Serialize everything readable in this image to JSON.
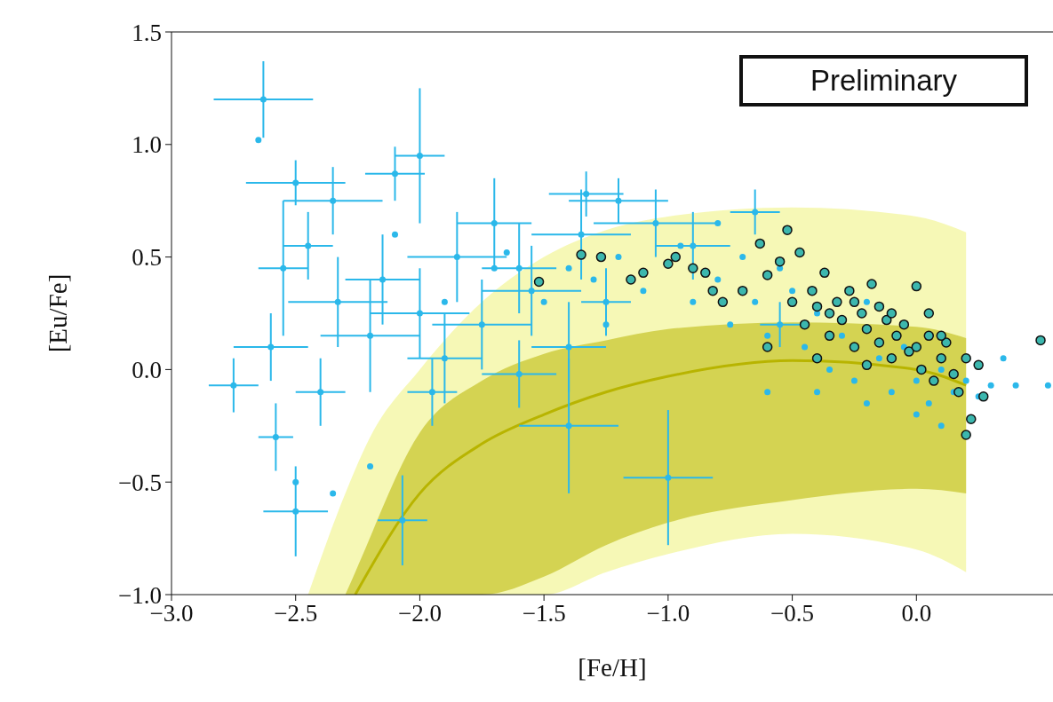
{
  "chart_data": {
    "type": "scatter",
    "xlabel": "[Fe/H]",
    "ylabel": "[Eu/Fe]",
    "xlim": [
      -3.0,
      0.55
    ],
    "ylim": [
      -1.0,
      1.5
    ],
    "xticks": [
      {
        "value": -3.0,
        "label": "−3.0"
      },
      {
        "value": -2.5,
        "label": "−2.5"
      },
      {
        "value": -2.0,
        "label": "−2.0"
      },
      {
        "value": -1.5,
        "label": "−1.5"
      },
      {
        "value": -1.0,
        "label": "−1.0"
      },
      {
        "value": -0.5,
        "label": "−0.5"
      },
      {
        "value": 0.0,
        "label": "0.0"
      }
    ],
    "yticks": [
      {
        "value": -1.0,
        "label": "−1.0"
      },
      {
        "value": -0.5,
        "label": "−0.5"
      },
      {
        "value": 0.0,
        "label": "0.0"
      },
      {
        "value": 0.5,
        "label": "0.5"
      },
      {
        "value": 1.0,
        "label": "1.0"
      },
      {
        "value": 1.5,
        "label": "1.5"
      }
    ],
    "grid": false,
    "legend": false,
    "annotations": [
      "Preliminary"
    ],
    "series": [
      {
        "type": "line",
        "color": "#eef27a",
        "x": [
          -2.45,
          -2.3,
          -2.2,
          -2.0,
          -1.75,
          -1.5,
          -1.25,
          -1.0,
          -0.5,
          0.0,
          0.2
        ],
        "values": [
          null,
          null,
          null,
          null,
          null,
          null,
          null,
          null,
          null,
          null,
          null
        ],
        "lower": [
          -1.0,
          -1.0,
          -1.0,
          -1.0,
          -1.0,
          -1.0,
          -0.9,
          -0.82,
          -0.73,
          -0.8,
          -0.9
        ],
        "upper": [
          -1.0,
          -0.55,
          -0.3,
          0.0,
          0.3,
          0.5,
          0.62,
          0.68,
          0.72,
          0.68,
          0.61
        ]
      },
      {
        "type": "line",
        "color": "#b8b400",
        "x": [
          -2.3,
          -2.26,
          -2.0,
          -1.75,
          -1.5,
          -1.25,
          -1.0,
          -0.5,
          0.0,
          0.2
        ],
        "values": [
          null,
          -1.0,
          -0.55,
          -0.33,
          -0.2,
          -0.1,
          -0.03,
          0.04,
          0.0,
          -0.07
        ],
        "lower": [
          -1.0,
          -1.0,
          -1.0,
          -1.0,
          -0.92,
          -0.78,
          -0.68,
          -0.58,
          -0.53,
          -0.55
        ],
        "upper": [
          -1.0,
          -0.9,
          -0.28,
          -0.05,
          0.07,
          0.13,
          0.18,
          0.21,
          0.19,
          0.14
        ]
      },
      {
        "color": "#2bb8ea",
        "x": [
          -2.63,
          -2.75,
          -2.58,
          -2.5,
          -2.07,
          -1.4,
          -1.0,
          -1.33,
          -2.5,
          -2.45,
          -2.33,
          -2.6,
          -2.1,
          -2.0,
          -1.85,
          -1.6,
          -1.75,
          -2.2,
          -1.9,
          -1.55,
          -1.35,
          -1.2,
          -1.05,
          -0.9,
          -0.65,
          -0.55,
          -1.25,
          -1.4,
          -2.4,
          -2.15,
          -2.0,
          -1.7,
          -2.35,
          -1.95,
          -1.6,
          -2.55
        ],
        "values": [
          1.2,
          -0.07,
          -0.3,
          -0.63,
          -0.67,
          -0.25,
          -0.48,
          0.78,
          0.83,
          0.55,
          0.3,
          0.1,
          0.87,
          0.95,
          0.5,
          0.45,
          0.2,
          0.15,
          0.05,
          0.35,
          0.6,
          0.75,
          0.65,
          0.55,
          0.7,
          0.2,
          0.3,
          0.1,
          -0.1,
          0.4,
          0.25,
          0.65,
          0.75,
          -0.1,
          -0.02,
          0.45
        ],
        "xerrors": [
          0.2,
          0.1,
          0.07,
          0.13,
          0.1,
          0.2,
          0.18,
          0.15,
          0.2,
          0.1,
          0.2,
          0.15,
          0.12,
          0.1,
          0.2,
          0.15,
          0.2,
          0.2,
          0.15,
          0.2,
          0.2,
          0.2,
          0.25,
          0.15,
          0.1,
          0.08,
          0.1,
          0.15,
          0.1,
          0.15,
          0.2,
          0.15,
          0.2,
          0.1,
          0.15,
          0.1
        ],
        "errors": [
          0.17,
          0.12,
          0.15,
          0.2,
          0.2,
          0.3,
          0.3,
          0.1,
          0.1,
          0.15,
          0.2,
          0.15,
          0.12,
          0.3,
          0.2,
          0.2,
          0.2,
          0.25,
          0.2,
          0.2,
          0.2,
          0.1,
          0.15,
          0.15,
          0.1,
          0.1,
          0.15,
          0.2,
          0.15,
          0.2,
          0.2,
          0.2,
          0.15,
          0.15,
          0.15,
          0.3
        ]
      },
      {
        "color": "#2bb8ea",
        "x": [
          -2.5,
          -2.2,
          -2.35,
          -2.1,
          -1.9,
          -1.7,
          -1.5,
          -1.4,
          -1.3,
          -1.2,
          -1.1,
          -1.0,
          -0.95,
          -0.9,
          -0.8,
          -0.75,
          -0.7,
          -0.65,
          -0.6,
          -0.55,
          -0.5,
          -0.45,
          -0.4,
          -0.35,
          -0.3,
          -0.25,
          -0.2,
          -0.15,
          -0.1,
          -0.05,
          0.0,
          0.05,
          0.1,
          0.15,
          0.2,
          0.25,
          0.3,
          0.35,
          0.4,
          -0.6,
          -0.4,
          -0.2,
          0.0,
          -1.65,
          -0.8,
          -2.65,
          -1.25,
          0.1,
          0.53
        ],
        "values": [
          -0.5,
          -0.43,
          -0.55,
          0.6,
          0.3,
          0.45,
          0.3,
          0.45,
          0.4,
          0.5,
          0.35,
          null,
          0.55,
          0.3,
          0.4,
          0.2,
          0.5,
          0.3,
          0.15,
          0.45,
          0.35,
          0.1,
          0.25,
          0.0,
          0.15,
          -0.05,
          0.3,
          0.05,
          -0.1,
          0.1,
          -0.05,
          -0.15,
          0.0,
          -0.1,
          -0.05,
          -0.12,
          -0.07,
          0.05,
          -0.07,
          -0.1,
          -0.1,
          -0.15,
          -0.2,
          0.52,
          0.65,
          1.02,
          0.2,
          -0.25,
          -0.07
        ]
      },
      {
        "color": "#3cb7ae",
        "x": [
          -1.52,
          -1.35,
          -1.27,
          -1.15,
          -1.1,
          -1.0,
          -0.97,
          -0.9,
          -0.85,
          -0.82,
          -0.78,
          -0.7,
          -0.63,
          -0.6,
          -0.55,
          -0.52,
          -0.5,
          -0.47,
          -0.45,
          -0.42,
          -0.4,
          -0.37,
          -0.35,
          -0.32,
          -0.3,
          -0.27,
          -0.25,
          -0.22,
          -0.2,
          -0.18,
          -0.15,
          -0.12,
          -0.1,
          -0.08,
          -0.05,
          -0.03,
          0.0,
          0.0,
          0.02,
          0.05,
          0.07,
          0.1,
          0.12,
          0.15,
          0.17,
          0.2,
          0.22,
          0.25,
          0.27,
          0.2,
          0.5,
          -0.6,
          -0.4,
          -0.2,
          -0.1,
          -0.35,
          -0.25,
          -0.15,
          0.05,
          0.1
        ],
        "values": [
          0.39,
          0.51,
          0.5,
          0.4,
          0.43,
          0.47,
          0.5,
          0.45,
          0.43,
          0.35,
          0.3,
          0.35,
          0.56,
          0.42,
          0.48,
          0.62,
          0.3,
          0.52,
          0.2,
          0.35,
          0.28,
          0.43,
          0.15,
          0.3,
          0.22,
          0.35,
          0.1,
          0.25,
          0.18,
          0.38,
          0.12,
          0.22,
          0.05,
          0.15,
          0.2,
          0.08,
          0.37,
          0.1,
          0.0,
          0.15,
          -0.05,
          0.05,
          0.12,
          -0.02,
          -0.1,
          0.05,
          -0.22,
          0.02,
          -0.12,
          -0.29,
          0.13,
          0.1,
          0.05,
          0.02,
          0.25,
          0.25,
          0.3,
          0.28,
          0.25,
          0.15
        ]
      }
    ]
  }
}
